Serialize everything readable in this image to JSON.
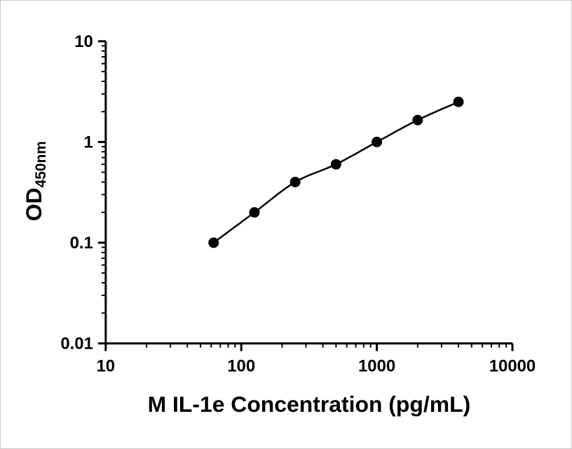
{
  "chart_data": {
    "type": "scatter",
    "title": "",
    "xlabel": "M IL-1e Concentration (pg/mL)",
    "ylabel": "OD450nm",
    "ylabel_main": "OD",
    "ylabel_sub": "450nm",
    "x_scale": "log",
    "y_scale": "log",
    "xlim": [
      10,
      10000
    ],
    "ylim": [
      0.01,
      10
    ],
    "x_ticks": [
      10,
      100,
      1000,
      10000
    ],
    "x_tick_labels": [
      "10",
      "100",
      "1000",
      "10000"
    ],
    "y_ticks": [
      10,
      1,
      0.1,
      0.01
    ],
    "y_tick_labels": [
      "10",
      "1",
      "0.1",
      "0.01"
    ],
    "grid": false,
    "legend": false,
    "x": [
      62.5,
      125,
      250,
      500,
      1000,
      2000,
      4000
    ],
    "y": [
      0.1,
      0.2,
      0.4,
      0.6,
      1.0,
      1.65,
      2.5
    ],
    "marker": "circle",
    "marker_color": "#000000",
    "line_color": "#000000",
    "axis_color": "#000000",
    "background_color": "#ffffff"
  }
}
